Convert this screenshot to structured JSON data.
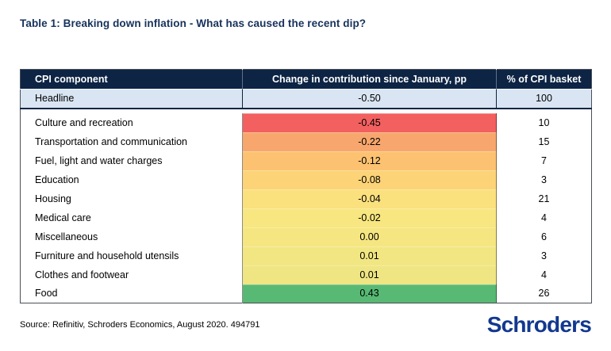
{
  "title": "Table 1: Breaking down inflation - What has caused the recent dip?",
  "table": {
    "columns": {
      "component": "CPI component",
      "change": "Change in contribution since January, pp",
      "basket": "% of CPI basket"
    },
    "headline": {
      "component": "Headline",
      "change": "-0.50",
      "basket": "100",
      "bg": "#d9e5f2"
    },
    "rows": [
      {
        "component": "Culture and recreation",
        "change": "-0.45",
        "basket": "10",
        "bg": "#f2605f"
      },
      {
        "component": "Transportation and communication",
        "change": "-0.22",
        "basket": "15",
        "bg": "#f7a76d"
      },
      {
        "component": "Fuel, light and water charges",
        "change": "-0.12",
        "basket": "7",
        "bg": "#fcc271"
      },
      {
        "component": "Education",
        "change": "-0.08",
        "basket": "3",
        "bg": "#fcd377"
      },
      {
        "component": "Housing",
        "change": "-0.04",
        "basket": "21",
        "bg": "#fbe07e"
      },
      {
        "component": "Medical care",
        "change": "-0.02",
        "basket": "4",
        "bg": "#f8e680"
      },
      {
        "component": "Miscellaneous",
        "change": "0.00",
        "basket": "6",
        "bg": "#f5e681"
      },
      {
        "component": "Furniture and household utensils",
        "change": "0.01",
        "basket": "3",
        "bg": "#f2e682"
      },
      {
        "component": "Clothes and footwear",
        "change": "0.01",
        "basket": "4",
        "bg": "#efe583"
      },
      {
        "component": "Food",
        "change": "0.43",
        "basket": "26",
        "bg": "#57b973"
      }
    ]
  },
  "footer": {
    "source": "Source: Refinitiv, Schroders Economics, August 2020. 494791",
    "logo_text": "Schroders"
  },
  "colors": {
    "header_bg": "#0d2444",
    "header_text": "#ffffff",
    "title_text": "#16325c",
    "headline_bg": "#d9e5f2",
    "heat_red": "#f2605f",
    "heat_yellow": "#f5e681",
    "heat_green": "#57b973",
    "logo_blue": "#12388f"
  },
  "chart_data": {
    "type": "table",
    "title": "Table 1: Breaking down inflation - What has caused the recent dip?",
    "columns": [
      "CPI component",
      "Change in contribution since January, pp",
      "% of CPI basket"
    ],
    "rows": [
      [
        "Headline",
        -0.5,
        100
      ],
      [
        "Culture and recreation",
        -0.45,
        10
      ],
      [
        "Transportation and communication",
        -0.22,
        15
      ],
      [
        "Fuel, light and water charges",
        -0.12,
        7
      ],
      [
        "Education",
        -0.08,
        3
      ],
      [
        "Housing",
        -0.04,
        21
      ],
      [
        "Medical care",
        -0.02,
        4
      ],
      [
        "Miscellaneous",
        0.0,
        6
      ],
      [
        "Furniture and household utensils",
        0.01,
        3
      ],
      [
        "Clothes and footwear",
        0.01,
        4
      ],
      [
        "Food",
        0.43,
        26
      ]
    ],
    "notes": "Change-in-contribution column cells are heat-mapped from red (most negative) through yellow to green (most positive)"
  }
}
